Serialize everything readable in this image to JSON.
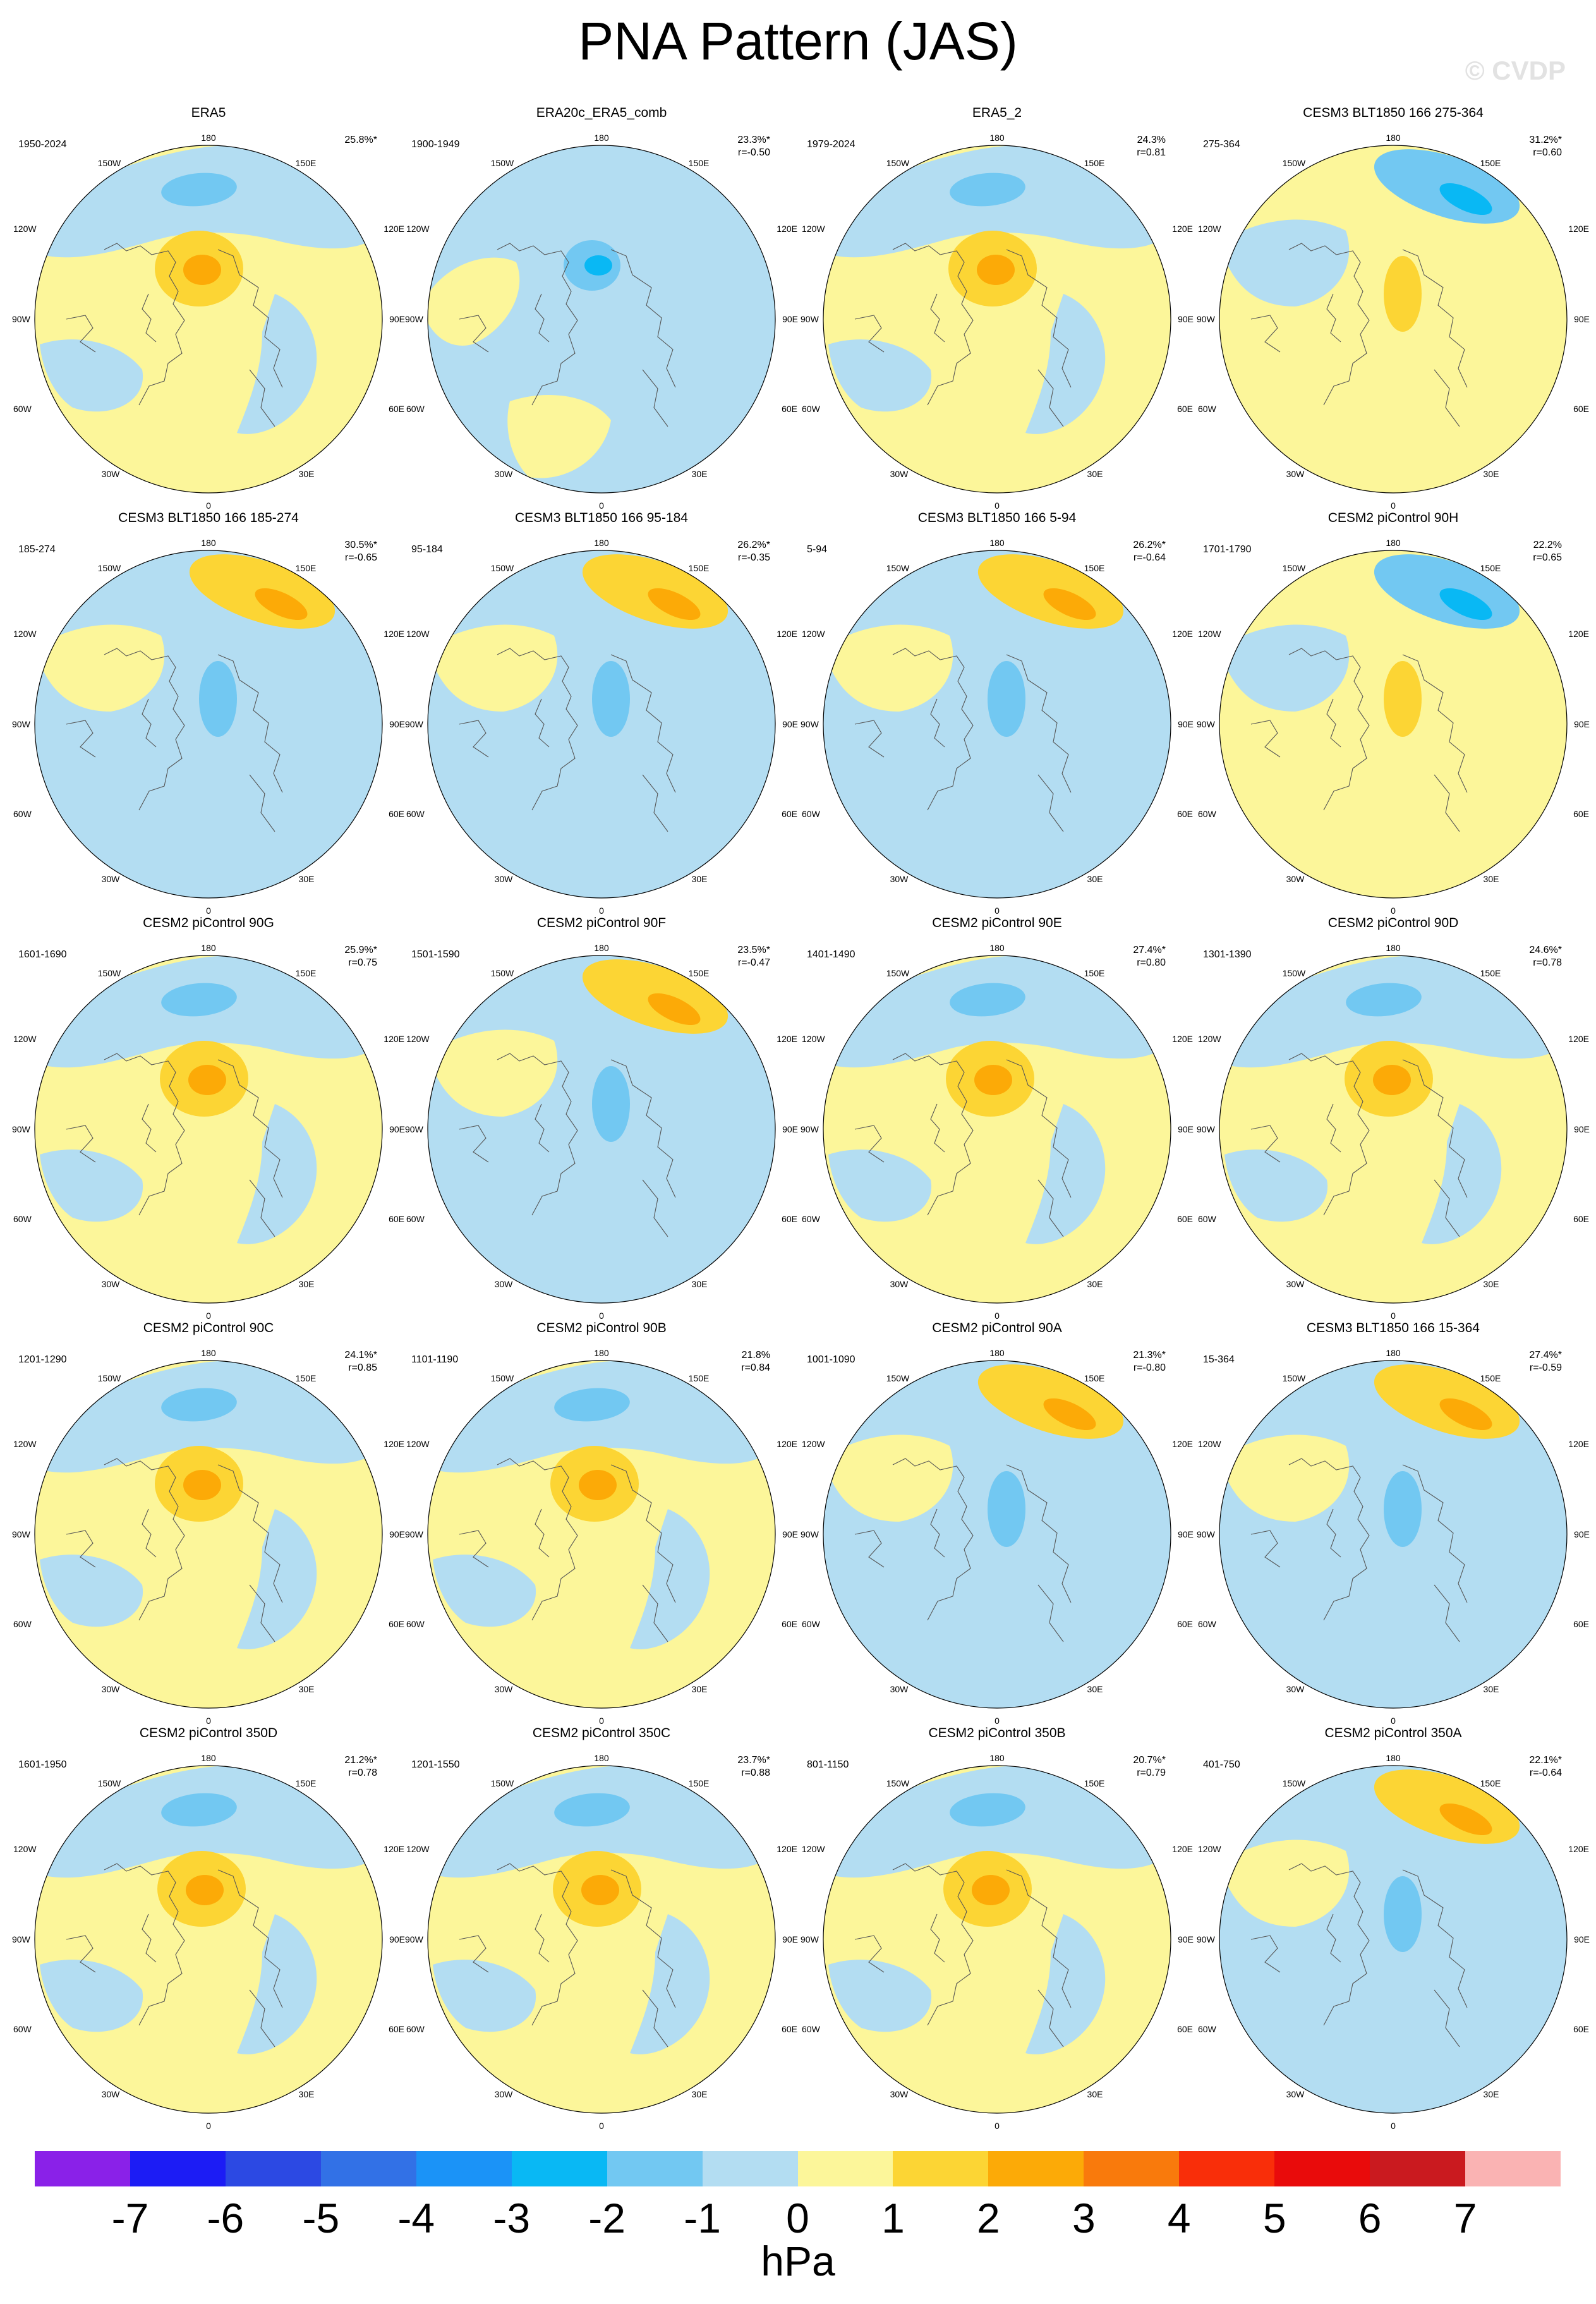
{
  "title": "PNA Pattern (JAS)",
  "watermark": "© CVDP",
  "map_labels": {
    "top": "180",
    "bottom": "0",
    "upper_left": "150W",
    "upper_right": "150E",
    "mid_upper_left": "120W",
    "mid_upper_right": "120E",
    "left": "90W",
    "right": "90E",
    "mid_lower_left": "60W",
    "mid_lower_right": "60E",
    "lower_left": "30W",
    "lower_right": "30E"
  },
  "panels": [
    {
      "title": "ERA5",
      "period": "1950-2024",
      "pct": "25.8%*",
      "r": "",
      "pattern": "center_pos"
    },
    {
      "title": "ERA20c_ERA5_comb",
      "period": "1900-1949",
      "pct": "23.3%*",
      "r": "r=-0.50",
      "pattern": "center_neg"
    },
    {
      "title": "ERA5_2",
      "period": "1979-2024",
      "pct": "24.3%",
      "r": "r=0.81",
      "pattern": "center_pos"
    },
    {
      "title": "CESM3 BLT1850 166 275-364",
      "period": "275-364",
      "pct": "31.2%*",
      "r": "r=0.60",
      "pattern": "top_neg"
    },
    {
      "title": "CESM3 BLT1850 166 185-274",
      "period": "185-274",
      "pct": "30.5%*",
      "r": "r=-0.65",
      "pattern": "top_pos"
    },
    {
      "title": "CESM3 BLT1850 166 95-184",
      "period": "95-184",
      "pct": "26.2%*",
      "r": "r=-0.35",
      "pattern": "top_pos"
    },
    {
      "title": "CESM3 BLT1850 166 5-94",
      "period": "5-94",
      "pct": "26.2%*",
      "r": "r=-0.64",
      "pattern": "top_pos"
    },
    {
      "title": "CESM2 piControl 90H",
      "period": "1701-1790",
      "pct": "22.2%",
      "r": "r=0.65",
      "pattern": "top_neg"
    },
    {
      "title": "CESM2 piControl 90G",
      "period": "1601-1690",
      "pct": "25.9%*",
      "r": "r=0.75",
      "pattern": "center_pos"
    },
    {
      "title": "CESM2 piControl 90F",
      "period": "1501-1590",
      "pct": "23.5%*",
      "r": "r=-0.47",
      "pattern": "top_pos"
    },
    {
      "title": "CESM2 piControl 90E",
      "period": "1401-1490",
      "pct": "27.4%*",
      "r": "r=0.80",
      "pattern": "center_pos"
    },
    {
      "title": "CESM2 piControl 90D",
      "period": "1301-1390",
      "pct": "24.6%*",
      "r": "r=0.78",
      "pattern": "center_pos"
    },
    {
      "title": "CESM2 piControl 90C",
      "period": "1201-1290",
      "pct": "24.1%*",
      "r": "r=0.85",
      "pattern": "center_pos"
    },
    {
      "title": "CESM2 piControl 90B",
      "period": "1101-1190",
      "pct": "21.8%",
      "r": "r=0.84",
      "pattern": "center_pos"
    },
    {
      "title": "CESM2 piControl 90A",
      "period": "1001-1090",
      "pct": "21.3%*",
      "r": "r=-0.80",
      "pattern": "top_pos"
    },
    {
      "title": "CESM3 BLT1850 166 15-364",
      "period": "15-364",
      "pct": "27.4%*",
      "r": "r=-0.59",
      "pattern": "top_pos"
    },
    {
      "title": "CESM2 piControl 350D",
      "period": "1601-1950",
      "pct": "21.2%*",
      "r": "r=0.78",
      "pattern": "center_pos"
    },
    {
      "title": "CESM2 piControl 350C",
      "period": "1201-1550",
      "pct": "23.7%*",
      "r": "r=0.88",
      "pattern": "center_pos"
    },
    {
      "title": "CESM2 piControl 350B",
      "period": "801-1150",
      "pct": "20.7%*",
      "r": "r=0.79",
      "pattern": "center_pos"
    },
    {
      "title": "CESM2 piControl 350A",
      "period": "401-750",
      "pct": "22.1%*",
      "r": "r=-0.64",
      "pattern": "top_pos"
    }
  ],
  "colorbar": {
    "colors": [
      "#8a21e8",
      "#1c1cf5",
      "#2c49e3",
      "#3271e6",
      "#1b93f7",
      "#09b8f4",
      "#72c8f2",
      "#b3ddf2",
      "#fcf69a",
      "#fcd534",
      "#fcaa07",
      "#f97a0c",
      "#f92e09",
      "#e90b0b",
      "#ca1a1f",
      "#fab3b3"
    ],
    "tick_labels": [
      "-7",
      "-6",
      "-5",
      "-4",
      "-3",
      "-2",
      "-1",
      "0",
      "1",
      "2",
      "3",
      "4",
      "5",
      "6",
      "7"
    ],
    "units": "hPa"
  },
  "palette": {
    "pale_blue": "#b3ddf2",
    "mid_blue": "#72c8f2",
    "bright_blue": "#09b8f4",
    "pale_yellow": "#fcf69a",
    "gold": "#fcd534",
    "orange": "#fcaa07"
  }
}
